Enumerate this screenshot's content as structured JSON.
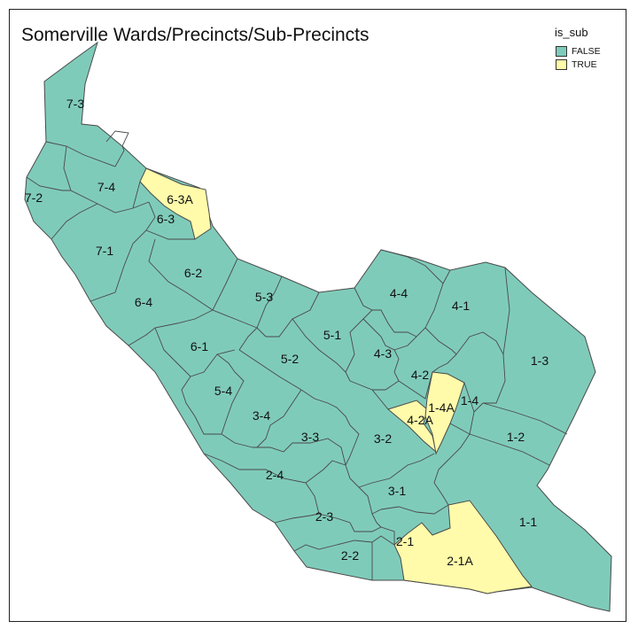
{
  "title": "Somerville Wards/Precincts/Sub-Precincts",
  "legend": {
    "title": "is_sub",
    "items": [
      {
        "label": "FALSE",
        "color": "#7fcbba"
      },
      {
        "label": "TRUE",
        "color": "#fffbaa"
      }
    ]
  },
  "colors": {
    "false": "#7fcbba",
    "true": "#fffbaa",
    "border": "#4a4a4a"
  },
  "precincts": [
    {
      "label": "7-3",
      "is_sub": false
    },
    {
      "label": "7-2",
      "is_sub": false
    },
    {
      "label": "7-4",
      "is_sub": false
    },
    {
      "label": "7-1",
      "is_sub": false
    },
    {
      "label": "6-3",
      "is_sub": false
    },
    {
      "label": "6-3A",
      "is_sub": true
    },
    {
      "label": "6-2",
      "is_sub": false
    },
    {
      "label": "6-4",
      "is_sub": false
    },
    {
      "label": "6-1",
      "is_sub": false
    },
    {
      "label": "5-3",
      "is_sub": false
    },
    {
      "label": "5-1",
      "is_sub": false
    },
    {
      "label": "5-2",
      "is_sub": false
    },
    {
      "label": "5-4",
      "is_sub": false
    },
    {
      "label": "4-4",
      "is_sub": false
    },
    {
      "label": "4-1",
      "is_sub": false
    },
    {
      "label": "4-3",
      "is_sub": false
    },
    {
      "label": "4-2",
      "is_sub": false
    },
    {
      "label": "4-2A",
      "is_sub": true
    },
    {
      "label": "1-4A",
      "is_sub": true
    },
    {
      "label": "1-4",
      "is_sub": false
    },
    {
      "label": "1-3",
      "is_sub": false
    },
    {
      "label": "1-2",
      "is_sub": false
    },
    {
      "label": "1-1",
      "is_sub": false
    },
    {
      "label": "3-4",
      "is_sub": false
    },
    {
      "label": "3-3",
      "is_sub": false
    },
    {
      "label": "3-2",
      "is_sub": false
    },
    {
      "label": "3-1",
      "is_sub": false
    },
    {
      "label": "2-4",
      "is_sub": false
    },
    {
      "label": "2-3",
      "is_sub": false
    },
    {
      "label": "2-2",
      "is_sub": false
    },
    {
      "label": "2-1",
      "is_sub": false
    },
    {
      "label": "2-1A",
      "is_sub": true
    }
  ]
}
